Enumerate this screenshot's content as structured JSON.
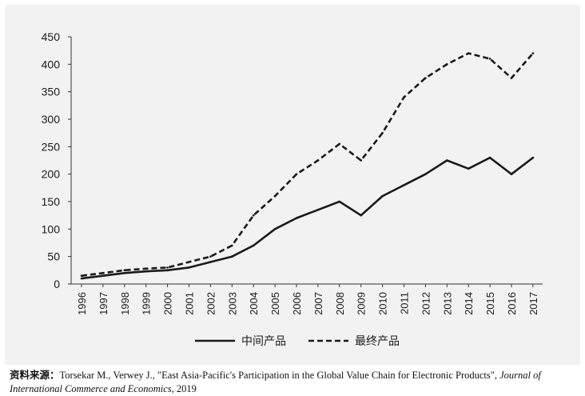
{
  "chart_data": {
    "type": "line",
    "title": "",
    "xlabel": "",
    "ylabel": "",
    "categories": [
      "1996",
      "1997",
      "1998",
      "1999",
      "2000",
      "2001",
      "2002",
      "2003",
      "2004",
      "2005",
      "2006",
      "2007",
      "2008",
      "2009",
      "2010",
      "2011",
      "2012",
      "2013",
      "2014",
      "2015",
      "2016",
      "2017"
    ],
    "ylim": [
      0,
      450
    ],
    "yticks": [
      0,
      50,
      100,
      150,
      200,
      250,
      300,
      350,
      400,
      450
    ],
    "grid": false,
    "legend_position": "bottom",
    "series": [
      {
        "name": "中间产品",
        "style": "solid",
        "values": [
          10,
          15,
          20,
          23,
          25,
          30,
          40,
          50,
          70,
          100,
          120,
          135,
          150,
          125,
          160,
          180,
          200,
          225,
          210,
          230,
          200,
          230
        ]
      },
      {
        "name": "最终产品",
        "style": "dashed",
        "values": [
          15,
          20,
          25,
          28,
          30,
          40,
          50,
          70,
          125,
          160,
          200,
          225,
          255,
          225,
          275,
          340,
          375,
          400,
          420,
          410,
          375,
          420
        ]
      }
    ],
    "colors": {
      "line": "#1a1a1a",
      "axis": "#333333",
      "background": "#f2f2f2"
    }
  },
  "source": {
    "label": "资料来源：",
    "citation": "Torsekar M., Verwey J., \"East Asia-Pacific's Participation in the Global Value Chain for Electronic Products\",",
    "journal": "Journal of International Commerce and Economics",
    "year": ", 2019"
  }
}
